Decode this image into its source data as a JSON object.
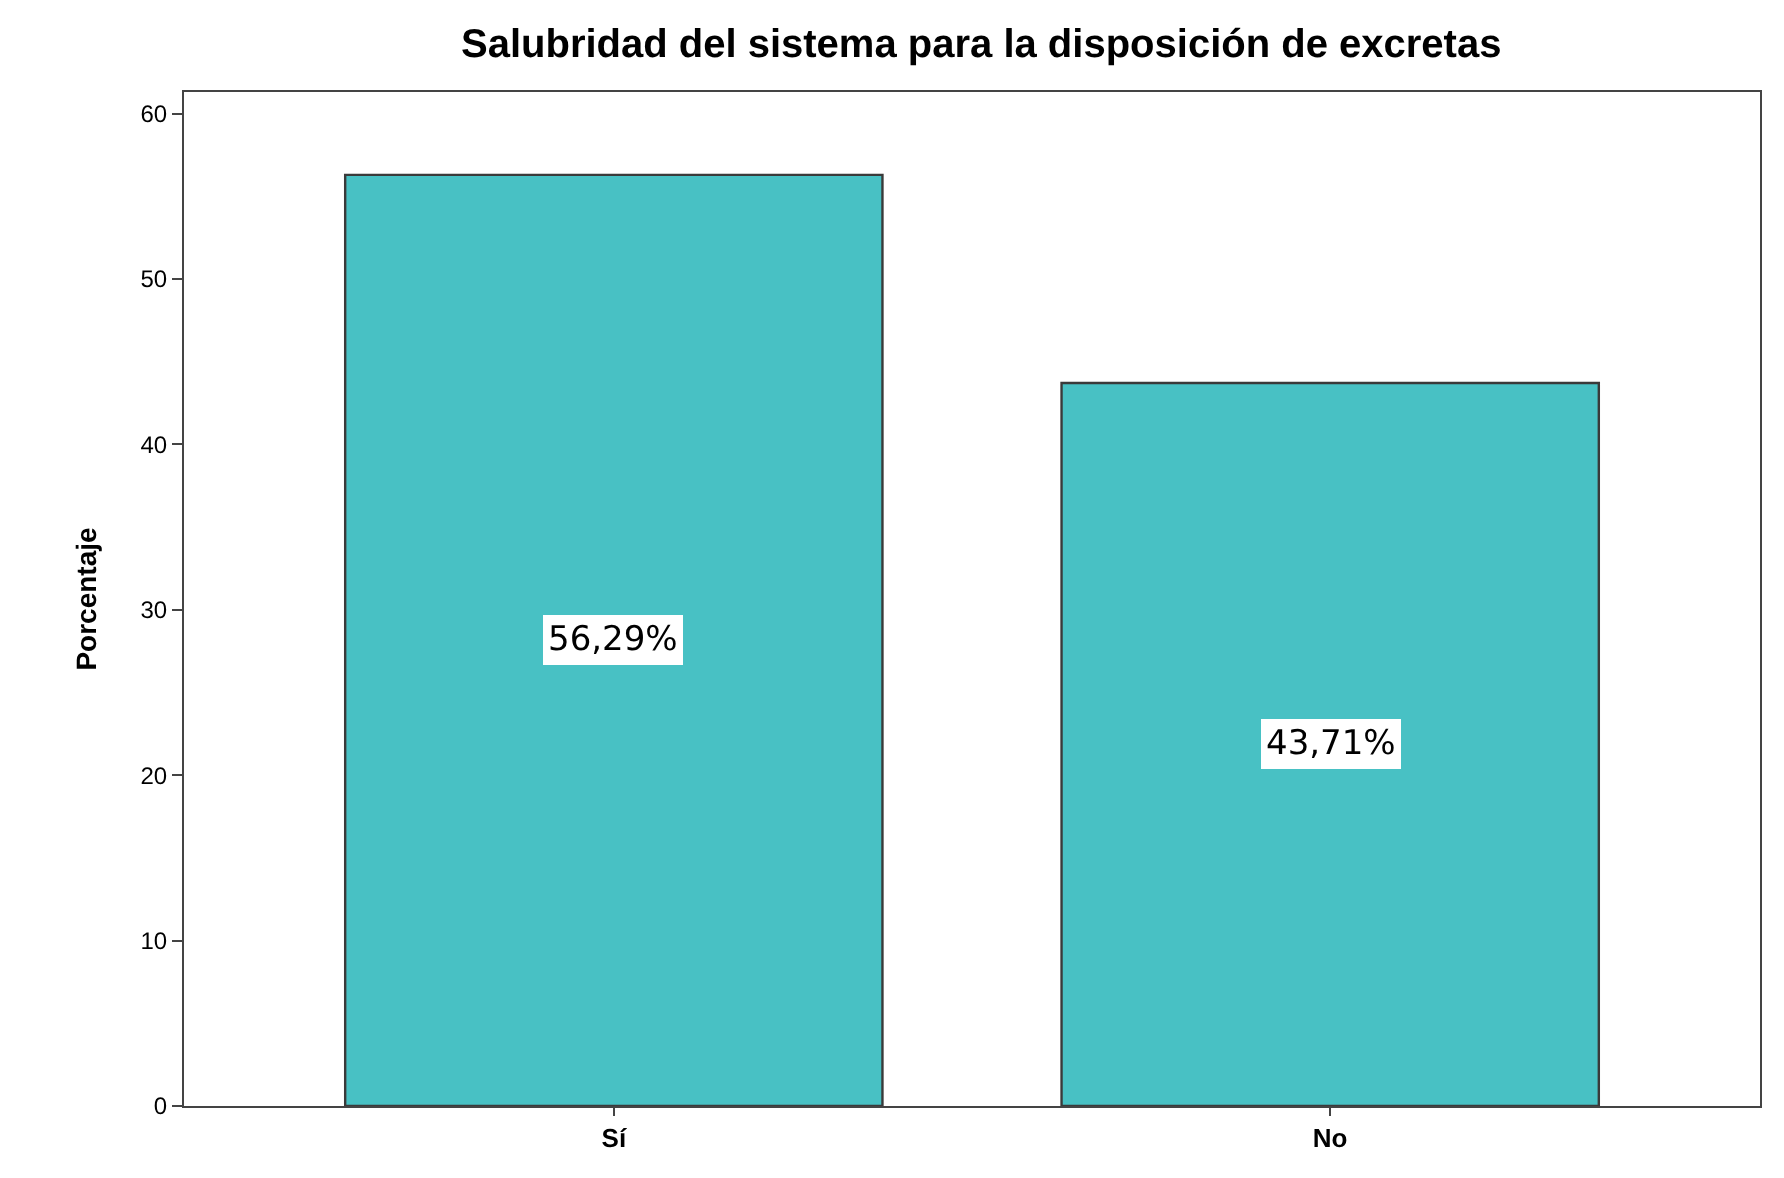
{
  "chart_data": {
    "type": "bar",
    "title": "Salubridad del sistema para la disposición de excretas",
    "ylabel": "Porcentaje",
    "categories": [
      "Sí",
      "No"
    ],
    "values": [
      56.29,
      43.71
    ],
    "value_labels": [
      "56,29%",
      "43,71%"
    ],
    "color": "#48c1c4",
    "ylim": [
      0,
      61.3
    ],
    "yticks": [
      0,
      10,
      20,
      30,
      40,
      50,
      60
    ],
    "legend": false
  }
}
